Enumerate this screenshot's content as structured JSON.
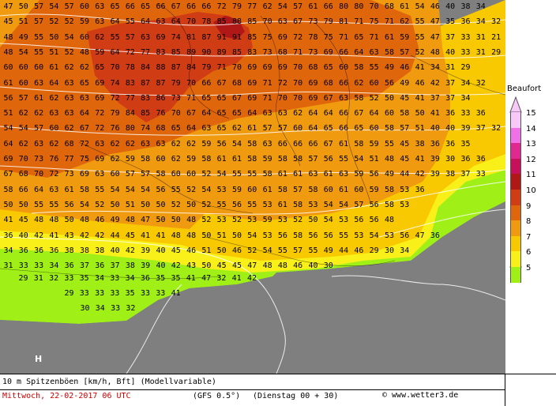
{
  "title": "10 m Spitzenböen [km/h, Bft] (Modellvariable)",
  "valid_time": "Mittwoch, 22-02-2017  06 UTC",
  "model": "(GFS 0.5°)",
  "run": "(Dienstag 00 + 30)",
  "copyright": "© www.wetter3.de",
  "pressure_label": "H",
  "legend": {
    "title": "Beaufort",
    "levels": [
      {
        "label": "15",
        "color": "#f8c8f8"
      },
      {
        "label": "14",
        "color": "#f070e8"
      },
      {
        "label": "13",
        "color": "#e02890"
      },
      {
        "label": "12",
        "color": "#c8105a"
      },
      {
        "label": "11",
        "color": "#b01818"
      },
      {
        "label": "10",
        "color": "#d03c14"
      },
      {
        "label": "9",
        "color": "#e0660c"
      },
      {
        "label": "8",
        "color": "#f09a10"
      },
      {
        "label": "7",
        "color": "#f8c800"
      },
      {
        "label": "6",
        "color": "#f8f018"
      },
      {
        "label": "5",
        "color": "#a0f018"
      }
    ]
  },
  "grid_rows": [
    "47 50 57 54 57 60 63 65 66 65 66 67 66 66 72 79 77 62 54 57 61 66 80 80 70 68 61 54 46 40 38 34",
    "45 51 57 52 52 59 63 64 55 64 63 64 70 78 85 88 85 70 63 67 73 79 81 71 75 71 62 55 47 35 36 34 32",
    "48 49 55 50 54 60 62 55 57 63 69 74 81 87 91 91 85 75 69 72 78 75 71 65 71 61 59 55 47 37 33 31 21",
    "48 54 55 51 52 48 59 64 72 77 83 85 89 90 89 85 83 73 68 71 73 69 66 64 63 58 57 52 48 40 33 31 29",
    "60 60 60 61 62 62 65 70 78 84 88 87 84 79 71 70 69 69 69 70 68 65 60 58 55 49 46 41 34 31 29",
    "61 60 63 64 63 65 69 74 83 87 87 79 70 66 67 68 69 71 72 70 69 68 66 62 60 56 49 46 42 37 34 32",
    "56 57 61 62 63 63 69 72 77 83 86 73 71 65 65 67 69 71 70 70 69 67 63 58 52 50 45 41 37 37 34",
    "51 62 62 63 63 64 72 79 84 85 76 70 67 64 65 65 64 63 63 62 64 64 66 67 64 60 58 50 41 36 33 36",
    "54 54 57 60 62 67 72 76 80 74 68 65 64 63 65 62 61 57 57 60 64 65 66 65 60 58 57 51 40 40 39 37 32",
    "64 62 63 62 68 72 63 62 62 63 63 62 62 59 56 54 58 63 66 66 66 67 61 58 59 55 45 38 36 36 35",
    "69 70 73 76 77 75 69 62 59 58 60 62 59 58 61 61 58 59 58 58 57 56 55 54 51 48 45 41 39 30 36 36",
    "67 68 70 72 73 69 63 60 57 57 58 60 60 52 54 55 55 58 61 61 63 61 63 59 56 49 44 42 39 38 37 33",
    "58 66 64 63 61 58 55 54 54 54 56 55 52 54 53 59 60 61 58 57 58 60 61 60 59 58 53 36",
    "50 50 55 55 56 54 52 50 51 50 50 52 50 52 55 56 55 53 61 58 53 54 54 57 56 58 53",
    "41 45 48 48 50 48 46 49 48 47 50 50 48 52 53 52 53 59 53 52 50 54 53 56 56 48",
    "36 40 42 41 43 42 42 44 45 41 41 48 48 50 51 50 54 53 56 58 56 56 55 53 54 53 56 47 36",
    "34 36 36 36 38 38 38 40 42 39 40 45 46 51 50 46 52 54 55 57 55 49 44 46 29 30 34",
    "31 33 33 34 36 37 36 37 38 39 40 42 43 50 45 45 47 48 48 46 40 30"
  ],
  "coastal_labels": [
    "29 31 32 33 35 34 33 34 36 35 35 41 47 32 41 42",
    "29 33 33 33 35 33 33 41",
    "30 34 33 32"
  ]
}
